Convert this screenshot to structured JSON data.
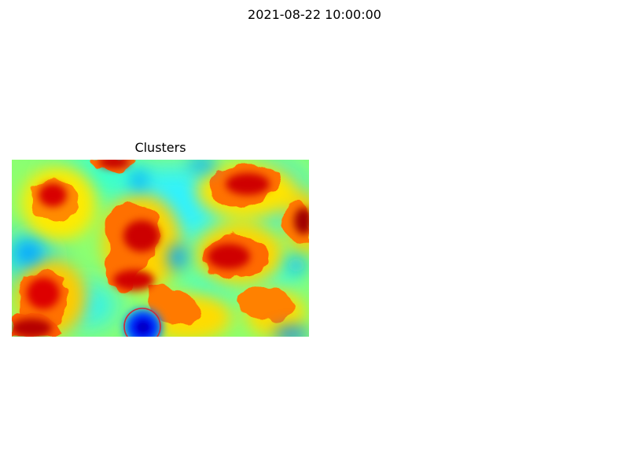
{
  "figure": {
    "suptitle": "2021-08-22 10:00:00"
  },
  "chart_data": {
    "type": "heatmap",
    "title": "Clusters",
    "colormap": "jet",
    "colorbar": false,
    "axes_visible": false,
    "grid": false,
    "highlighted_cluster_colors": {
      "circle_outline": "#cc2a3a"
    }
  }
}
